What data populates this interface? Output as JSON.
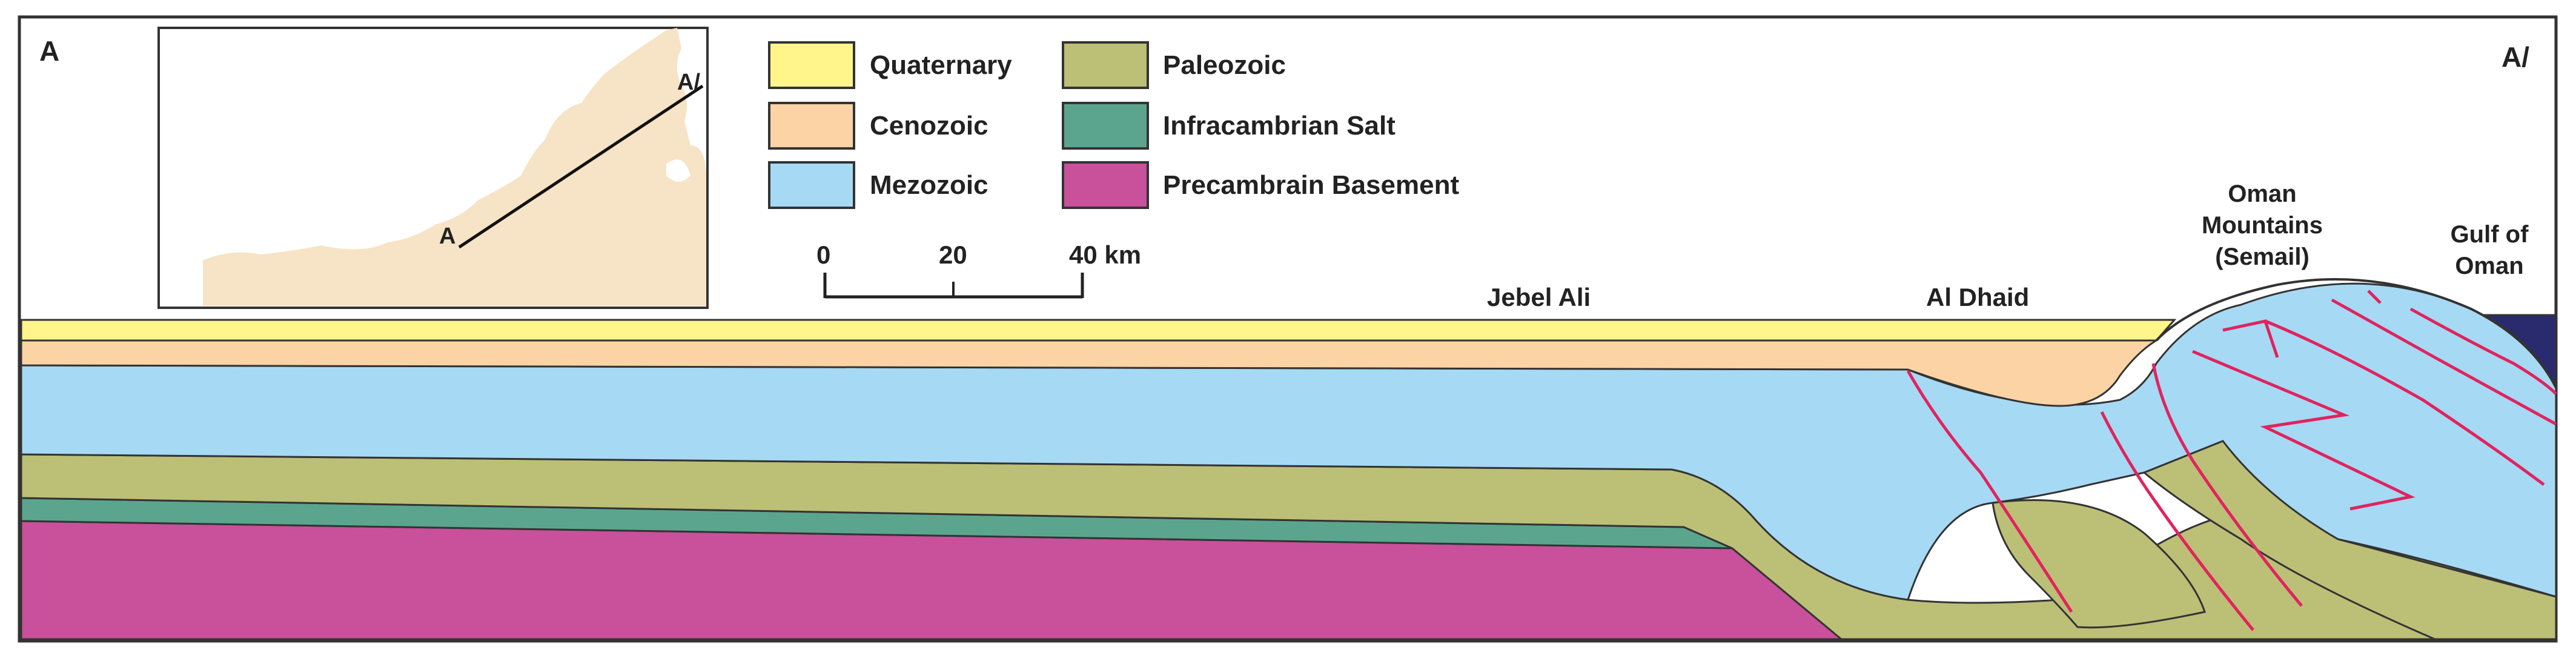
{
  "section": {
    "start_label": "A",
    "end_label": "A/"
  },
  "legend": {
    "items": [
      {
        "label": "Quaternary",
        "color": "#FFF58A"
      },
      {
        "label": "Cenozoic",
        "color": "#FBD3A5"
      },
      {
        "label": "Mezozoic",
        "color": "#A6D9F4"
      },
      {
        "label": "Paleozoic",
        "color": "#BCBF76"
      },
      {
        "label": "Infracambrian Salt",
        "color": "#5BA58F"
      },
      {
        "label": "Precambrain Basement",
        "color": "#C9509A"
      }
    ]
  },
  "scale_bar": {
    "ticks": [
      "0",
      "20",
      "40 km"
    ]
  },
  "inset": {
    "point_a": "A",
    "point_a_prime": "A/",
    "land_color": "#F7E3C5"
  },
  "places": {
    "jebel_ali": "Jebel Ali",
    "al_dhaid": "Al Dhaid",
    "oman_mountains": [
      "Oman",
      "Mountains",
      "(Semail)"
    ],
    "gulf_of_oman": [
      "Gulf of",
      "Oman"
    ]
  },
  "colors": {
    "fault": "#E0245E",
    "sea": "#2A2A6E",
    "outline": "#333333"
  }
}
